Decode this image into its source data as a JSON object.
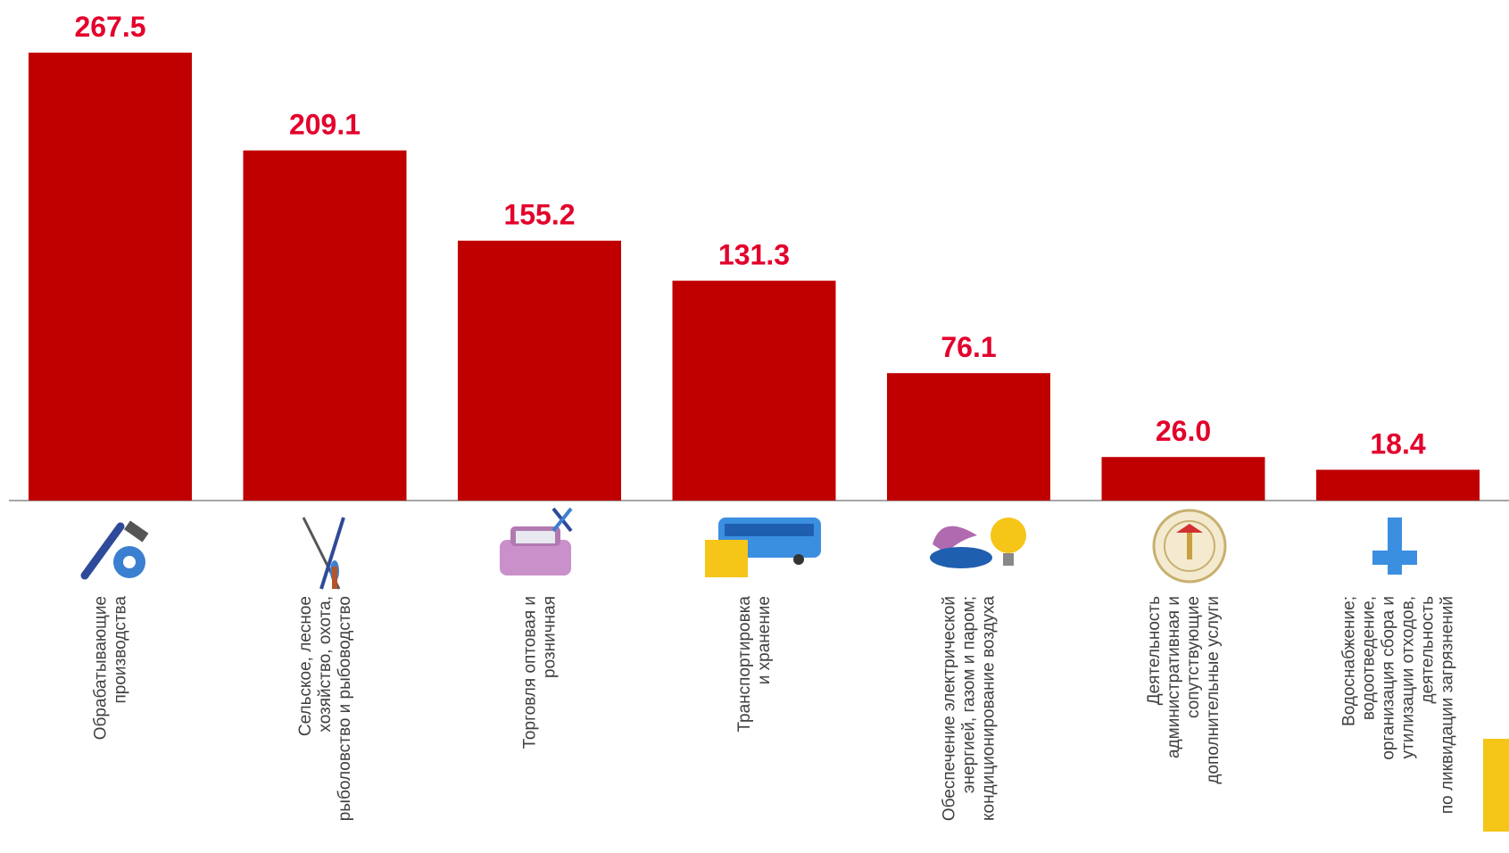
{
  "chart_data": {
    "type": "bar",
    "categories": [
      "Обрабатывающие\nпроизводства",
      "Сельское, лесное\nхозяйство, охота,\nрыболовство и рыбоводство",
      "Торговля оптовая и\nрозничная",
      "Транспортировка\nи хранение",
      "Обеспечение электрической\nэнергией, газом и паром;\nкондиционирование воздуха",
      "Деятельность\nадминистративная и\nсопутствующие\nдополнительные услуги",
      "Водоснабжение;\nводоотведение,\nорганизация сбора и\nутилизации отходов,\nдеятельность\nпо ликвидации загрязнений"
    ],
    "values": [
      267.5,
      209.1,
      155.2,
      131.3,
      76.1,
      26.0,
      18.4
    ],
    "value_labels": [
      "267.5",
      "209.1",
      "155.2",
      "131.3",
      "76.1",
      "26.0",
      "18.4"
    ],
    "color": "#c00000"
  }
}
